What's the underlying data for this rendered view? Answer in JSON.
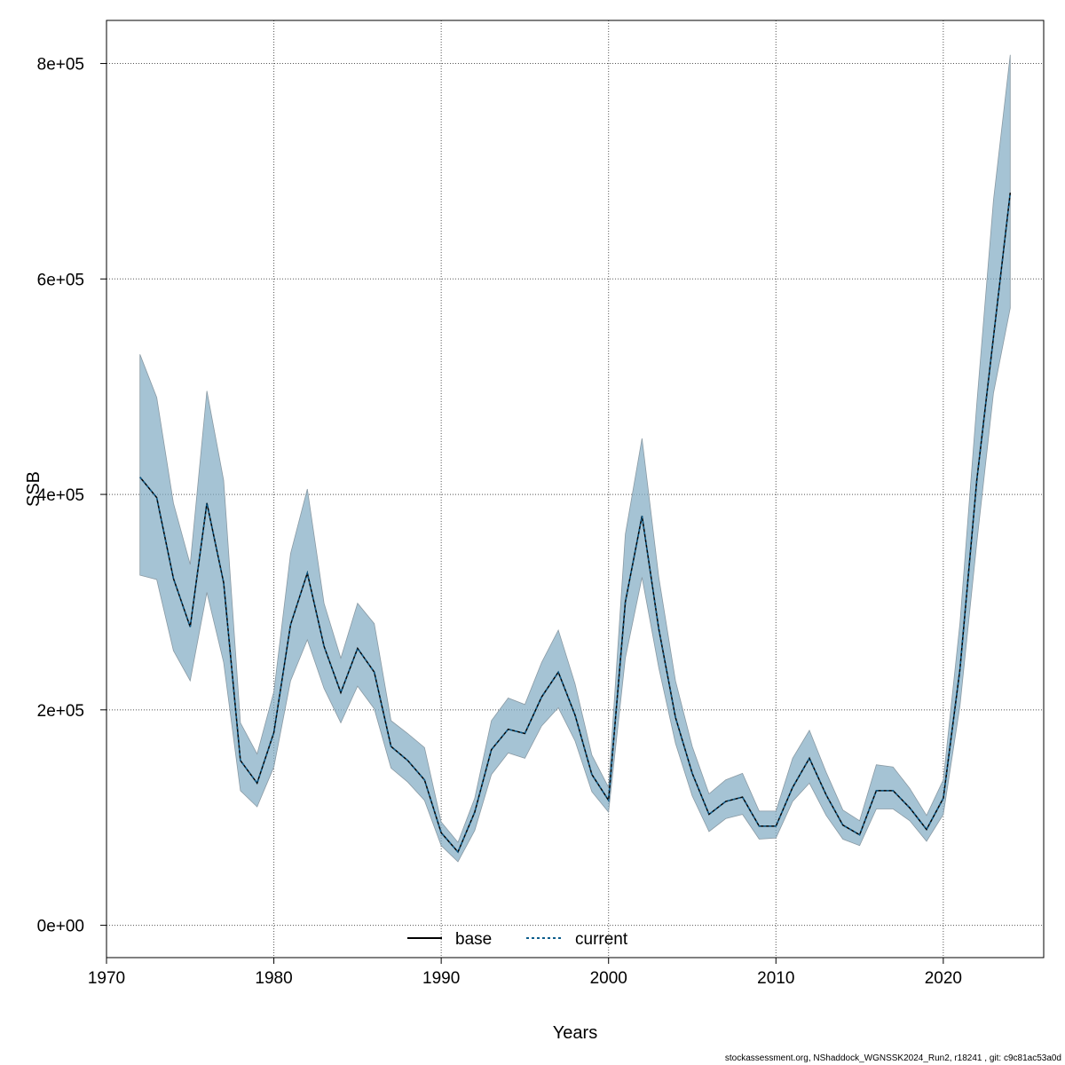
{
  "chart_data": {
    "type": "line",
    "title": "",
    "xlabel": "Years",
    "ylabel": "SSB",
    "xlim": [
      1970,
      2026
    ],
    "ylim": [
      -30000,
      840000
    ],
    "x_ticks": [
      1970,
      1980,
      1990,
      2000,
      2010,
      2020
    ],
    "x_tick_labels": [
      "1970",
      "1980",
      "1990",
      "2000",
      "2010",
      "2020"
    ],
    "y_ticks": [
      0,
      200000,
      400000,
      600000,
      800000
    ],
    "y_tick_labels": [
      "0e+00",
      "2e+05",
      "4e+05",
      "6e+05",
      "8e+05"
    ],
    "grid": true,
    "legend_position": "bottom-center",
    "band_color": "#7fa9c2",
    "legend": [
      {
        "label": "base",
        "style": "solid",
        "color": "#000000"
      },
      {
        "label": "current",
        "style": "dashed",
        "color": "#0d5d8c"
      }
    ],
    "x": [
      1972,
      1973,
      1974,
      1975,
      1976,
      1977,
      1978,
      1979,
      1980,
      1981,
      1982,
      1983,
      1984,
      1985,
      1986,
      1987,
      1988,
      1989,
      1990,
      1991,
      1992,
      1993,
      1994,
      1995,
      1996,
      1997,
      1998,
      1999,
      2000,
      2001,
      2002,
      2003,
      2004,
      2005,
      2006,
      2007,
      2008,
      2009,
      2010,
      2011,
      2012,
      2013,
      2014,
      2015,
      2016,
      2017,
      2018,
      2019,
      2020,
      2021,
      2022,
      2023,
      2024
    ],
    "series": [
      {
        "name": "base",
        "values": [
          416000,
          397000,
          322000,
          277000,
          392000,
          318000,
          153000,
          132000,
          179000,
          279000,
          327000,
          259000,
          216000,
          257000,
          235000,
          166000,
          153000,
          135000,
          86000,
          68000,
          105000,
          163000,
          182000,
          178000,
          212000,
          235000,
          195000,
          140000,
          116000,
          300000,
          380000,
          275000,
          193000,
          141000,
          103000,
          115000,
          119000,
          92000,
          92000,
          128000,
          155000,
          121000,
          93000,
          84000,
          125000,
          125000,
          109000,
          89000,
          118000,
          238000,
          413000,
          546000,
          680000
        ]
      },
      {
        "name": "current",
        "values": [
          416000,
          397000,
          322000,
          277000,
          392000,
          318000,
          153000,
          132000,
          179000,
          279000,
          327000,
          259000,
          216000,
          257000,
          235000,
          166000,
          153000,
          135000,
          86000,
          68000,
          105000,
          163000,
          182000,
          178000,
          212000,
          235000,
          195000,
          140000,
          116000,
          300000,
          380000,
          275000,
          193000,
          141000,
          103000,
          115000,
          119000,
          92000,
          92000,
          128000,
          155000,
          121000,
          93000,
          84000,
          125000,
          125000,
          109000,
          89000,
          118000,
          238000,
          413000,
          546000,
          680000
        ]
      }
    ],
    "ci_lower": [
      325000,
      321000,
      255000,
      227000,
      309000,
      244000,
      125000,
      110000,
      147000,
      227000,
      265000,
      220000,
      188000,
      222000,
      201000,
      146000,
      133000,
      116000,
      74000,
      59000,
      88000,
      140000,
      160000,
      155000,
      185000,
      202000,
      171000,
      124000,
      105000,
      248000,
      323000,
      239000,
      169000,
      120000,
      87000,
      99000,
      103000,
      80000,
      81000,
      115000,
      132000,
      102000,
      80000,
      74000,
      108000,
      108000,
      97000,
      78000,
      103000,
      204000,
      355000,
      494000,
      573000
    ],
    "ci_upper": [
      530000,
      490000,
      392000,
      335000,
      496000,
      413000,
      188000,
      159000,
      217000,
      345000,
      405000,
      299000,
      248000,
      299000,
      280000,
      190000,
      178000,
      165000,
      96000,
      77000,
      118000,
      190000,
      211000,
      205000,
      244000,
      274000,
      224000,
      158000,
      128000,
      363000,
      452000,
      323000,
      227000,
      166000,
      122000,
      135000,
      141000,
      106000,
      106000,
      155000,
      181000,
      142000,
      107000,
      97000,
      149000,
      147000,
      127000,
      102000,
      135000,
      281000,
      484000,
      673000,
      808000
    ]
  },
  "footer": "stockassessment.org, NShaddock_WGNSSK2024_Run2, r18241 , git: c9c81ac53a0d"
}
